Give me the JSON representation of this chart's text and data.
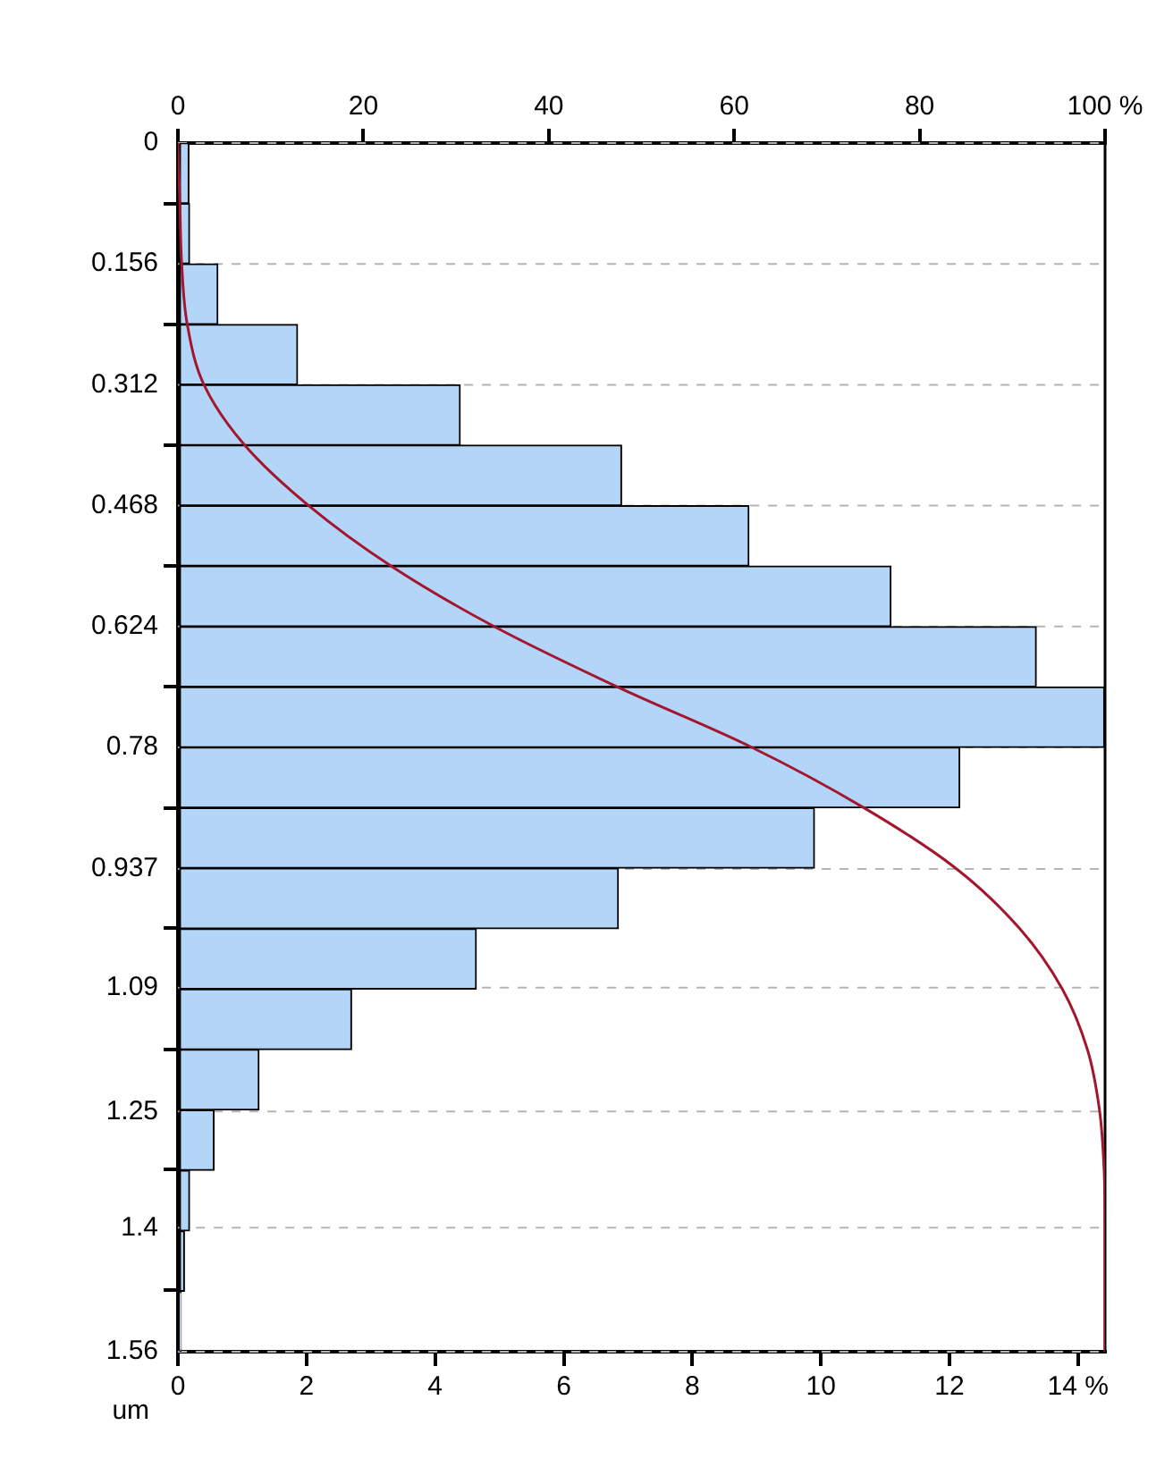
{
  "chart_data": {
    "type": "histogram",
    "orientation": "horizontal",
    "ylabel": "um",
    "color": "#b3d6f8",
    "bins": [
      0,
      0.078,
      0.156,
      0.234,
      0.312,
      0.39,
      0.468,
      0.546,
      0.624,
      0.702,
      0.78,
      0.858,
      0.936,
      1.014,
      1.092,
      1.17,
      1.248,
      1.326,
      1.404,
      1.482,
      1.56
    ],
    "values": [
      0.17,
      0.18,
      0.62,
      1.86,
      4.39,
      6.9,
      8.88,
      11.09,
      13.35,
      14.41,
      12.16,
      9.9,
      6.85,
      4.64,
      2.7,
      1.26,
      0.56,
      0.18,
      0.1,
      0.05
    ],
    "series": [
      {
        "type": "line",
        "axis": "x2",
        "color": "#a3162e",
        "x": [
          0,
          0.078,
          0.156,
          0.234,
          0.312,
          0.39,
          0.468,
          0.546,
          0.624,
          0.702,
          0.78,
          0.858,
          0.936,
          1.014,
          1.092,
          1.17,
          1.248,
          1.326,
          1.404,
          1.482,
          1.56
        ],
        "values": [
          0,
          0.2,
          0.4,
          1.0,
          2.8,
          7.2,
          14.1,
          23.0,
          34.1,
          47.4,
          61.9,
          74.0,
          83.9,
          90.8,
          95.4,
          98.1,
          99.4,
          99.9,
          100,
          100,
          100
        ]
      }
    ],
    "xlim": [
      0,
      14.42
    ],
    "xticks": [
      0,
      2,
      4,
      6,
      8,
      10,
      12,
      {
        "value": 14,
        "label": "14 %"
      }
    ],
    "x2lim": [
      0,
      100
    ],
    "x2ticks": [
      0,
      20,
      40,
      60,
      80,
      {
        "value": 100,
        "label": "100 %"
      }
    ],
    "ylim": [
      1.56,
      0
    ],
    "yticks": [
      0,
      0.156,
      0.312,
      0.468,
      0.624,
      0.78,
      0.937,
      1.09,
      1.25,
      1.4,
      1.56
    ],
    "grid": "y",
    "line_style": "solid",
    "marker": "none"
  }
}
